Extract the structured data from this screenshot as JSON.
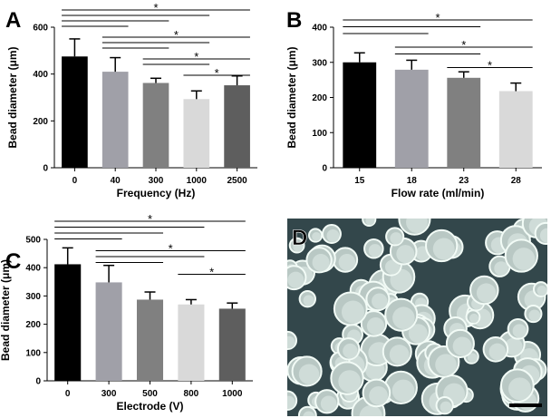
{
  "chart_data": [
    {
      "type": "bar",
      "panel_label": "A",
      "xlabel": "Frequency (Hz)",
      "ylabel": "Bead diameter (μm)",
      "categories": [
        "0",
        "40",
        "300",
        "1000",
        "2500"
      ],
      "values": [
        475,
        410,
        362,
        293,
        352
      ],
      "errors": [
        75,
        60,
        20,
        35,
        40
      ],
      "colors": [
        "#000000",
        "#a0a0a8",
        "#808080",
        "#d9d9d9",
        "#5e5e5e"
      ],
      "ylim": [
        0,
        600
      ],
      "yticks": [
        0,
        200,
        400,
        600
      ],
      "comparisons": [
        {
          "label": "*",
          "pairs": [
            [
              0,
              4
            ],
            [
              0,
              3
            ],
            [
              0,
              2
            ],
            [
              0,
              1
            ]
          ]
        },
        {
          "label": "*",
          "pairs": [
            [
              1,
              4
            ],
            [
              1,
              3
            ],
            [
              1,
              2
            ]
          ]
        },
        {
          "label": "*",
          "pairs": [
            [
              2,
              4
            ],
            [
              2,
              3
            ]
          ]
        },
        {
          "label": "*",
          "pairs": [
            [
              3,
              4
            ]
          ]
        }
      ]
    },
    {
      "type": "bar",
      "panel_label": "B",
      "xlabel": "Flow rate (ml/min)",
      "ylabel": "Bead diameter (μm)",
      "categories": [
        "15",
        "18",
        "23",
        "28"
      ],
      "values": [
        300,
        279,
        256,
        218
      ],
      "errors": [
        27,
        27,
        17,
        23
      ],
      "colors": [
        "#000000",
        "#a0a0a8",
        "#808080",
        "#d9d9d9"
      ],
      "ylim": [
        0,
        400
      ],
      "yticks": [
        0,
        100,
        200,
        300,
        400
      ],
      "comparisons": [
        {
          "label": "*",
          "pairs": [
            [
              0,
              3
            ],
            [
              0,
              2
            ],
            [
              0,
              1
            ]
          ]
        },
        {
          "label": "*",
          "pairs": [
            [
              1,
              3
            ],
            [
              1,
              2
            ]
          ]
        },
        {
          "label": "*",
          "pairs": [
            [
              2,
              3
            ]
          ]
        }
      ]
    },
    {
      "type": "bar",
      "panel_label": "C",
      "xlabel": "Electrode (V)",
      "ylabel": "Bead diameter (μm)",
      "categories": [
        "0",
        "300",
        "500",
        "800",
        "1000"
      ],
      "values": [
        412,
        348,
        287,
        270,
        255
      ],
      "errors": [
        58,
        60,
        27,
        17,
        20
      ],
      "colors": [
        "#000000",
        "#a0a0a8",
        "#808080",
        "#d9d9d9",
        "#5e5e5e"
      ],
      "ylim": [
        0,
        500
      ],
      "yticks": [
        0,
        100,
        200,
        300,
        400,
        500
      ],
      "comparisons": [
        {
          "label": "*",
          "pairs": [
            [
              0,
              4
            ],
            [
              0,
              3
            ],
            [
              0,
              2
            ],
            [
              0,
              1
            ]
          ]
        },
        {
          "label": "*",
          "pairs": [
            [
              1,
              4
            ],
            [
              1,
              3
            ],
            [
              1,
              2
            ]
          ]
        },
        {
          "label": "*",
          "pairs": [
            [
              3,
              4
            ]
          ]
        }
      ]
    }
  ],
  "panel_d": {
    "label": "D"
  }
}
